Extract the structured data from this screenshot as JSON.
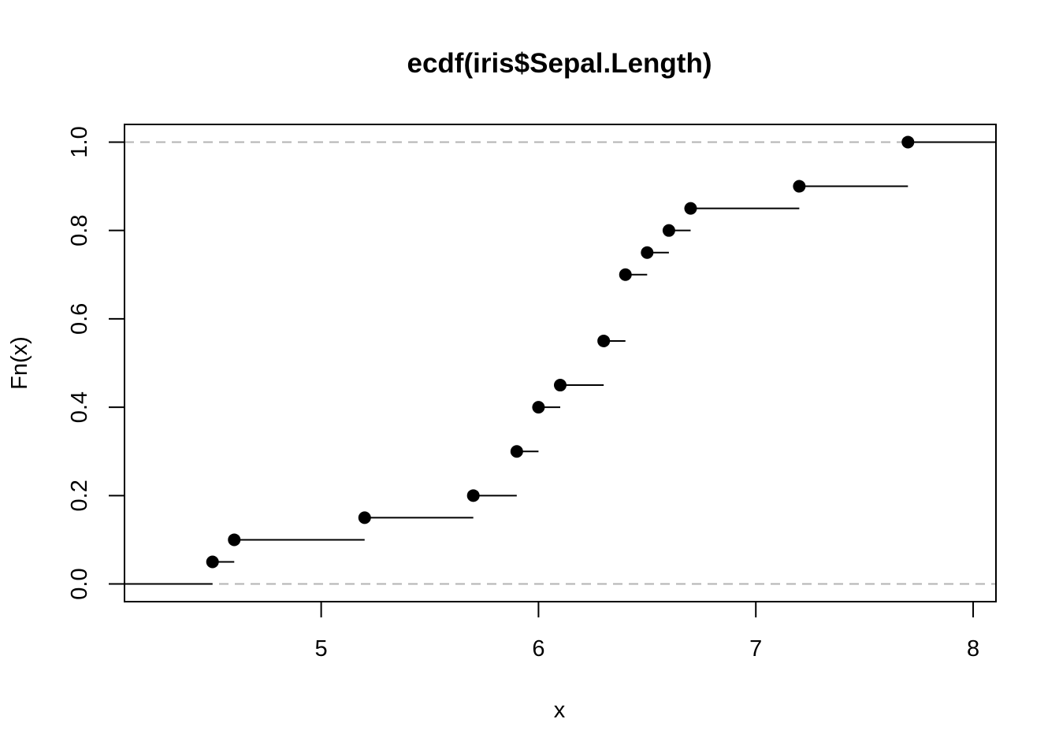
{
  "chart_data": {
    "type": "step",
    "title": "ecdf(iris$Sepal.Length)",
    "xlabel": "x",
    "ylabel": "Fn(x)",
    "xlim": [
      4.095,
      8.105
    ],
    "ylim": [
      -0.04,
      1.04
    ],
    "x_ticks": [
      {
        "value": 5,
        "label": "5"
      },
      {
        "value": 6,
        "label": "6"
      },
      {
        "value": 7,
        "label": "7"
      },
      {
        "value": 8,
        "label": "8"
      }
    ],
    "y_ticks": [
      {
        "value": 0.0,
        "label": "0.0"
      },
      {
        "value": 0.2,
        "label": "0.2"
      },
      {
        "value": 0.4,
        "label": "0.4"
      },
      {
        "value": 0.6,
        "label": "0.6"
      },
      {
        "value": 0.8,
        "label": "0.8"
      },
      {
        "value": 1.0,
        "label": "1.0"
      }
    ],
    "reference_lines": [
      0,
      1
    ],
    "points": [
      {
        "x": 4.5,
        "y": 0.05
      },
      {
        "x": 4.6,
        "y": 0.1
      },
      {
        "x": 5.2,
        "y": 0.15
      },
      {
        "x": 5.7,
        "y": 0.2
      },
      {
        "x": 5.9,
        "y": 0.3
      },
      {
        "x": 6.0,
        "y": 0.4
      },
      {
        "x": 6.1,
        "y": 0.45
      },
      {
        "x": 6.3,
        "y": 0.55
      },
      {
        "x": 6.4,
        "y": 0.7
      },
      {
        "x": 6.5,
        "y": 0.75
      },
      {
        "x": 6.6,
        "y": 0.8
      },
      {
        "x": 6.7,
        "y": 0.85
      },
      {
        "x": 7.2,
        "y": 0.9
      },
      {
        "x": 7.7,
        "y": 1.0
      }
    ],
    "colors": {
      "points": "#000000",
      "steps": "#000000",
      "reference": "#b3b3b3",
      "frame": "#000000"
    }
  }
}
